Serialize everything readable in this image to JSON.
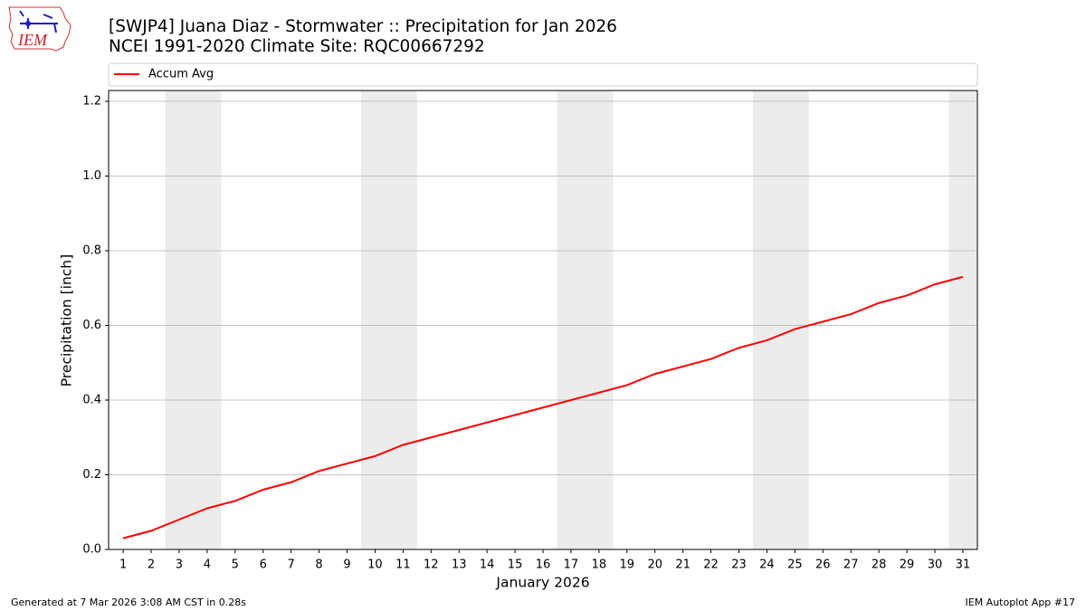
{
  "logo": {
    "text": "IEM"
  },
  "footer": {
    "left": "Generated at 7 Mar 2026 3:08 AM CST in 0.28s",
    "right": "IEM Autoplot App #17"
  },
  "chart_data": {
    "type": "line",
    "title": "[SWJP4] Juana Diaz - Stormwater :: Precipitation for Jan 2026",
    "subtitle": "NCEI 1991-2020 Climate Site: RQC00667292",
    "x_label": "January 2026",
    "y_label": "Precipitation [inch]",
    "x": [
      1,
      2,
      3,
      4,
      5,
      6,
      7,
      8,
      9,
      10,
      11,
      12,
      13,
      14,
      15,
      16,
      17,
      18,
      19,
      20,
      21,
      22,
      23,
      24,
      25,
      26,
      27,
      28,
      29,
      30,
      31
    ],
    "series": [
      {
        "name": "Accum Avg",
        "color": "#ff0000",
        "values": [
          0.03,
          0.05,
          0.08,
          0.11,
          0.13,
          0.16,
          0.18,
          0.21,
          0.23,
          0.25,
          0.28,
          0.3,
          0.32,
          0.34,
          0.36,
          0.38,
          0.4,
          0.42,
          0.44,
          0.47,
          0.49,
          0.51,
          0.54,
          0.56,
          0.59,
          0.61,
          0.63,
          0.66,
          0.68,
          0.71,
          0.73
        ]
      }
    ],
    "xlim": [
      0.48,
      31.52
    ],
    "xticks": [
      1,
      2,
      3,
      4,
      5,
      6,
      7,
      8,
      9,
      10,
      11,
      12,
      13,
      14,
      15,
      16,
      17,
      18,
      19,
      20,
      21,
      22,
      23,
      24,
      25,
      26,
      27,
      28,
      29,
      30,
      31
    ],
    "ylim": [
      0,
      1.229
    ],
    "yticks": [
      {
        "value": 0,
        "label": "0.0"
      },
      0.2,
      0.4,
      0.6,
      0.8,
      {
        "value": 1,
        "label": "1.0"
      },
      1.2
    ],
    "grid": true,
    "shaded_ranges": [
      [
        2.5,
        4.5
      ],
      [
        9.5,
        11.5
      ],
      [
        16.5,
        18.5
      ],
      [
        23.5,
        25.5
      ],
      [
        30.5,
        31.5
      ]
    ],
    "shade_color": "#ececec",
    "legend": "top"
  }
}
